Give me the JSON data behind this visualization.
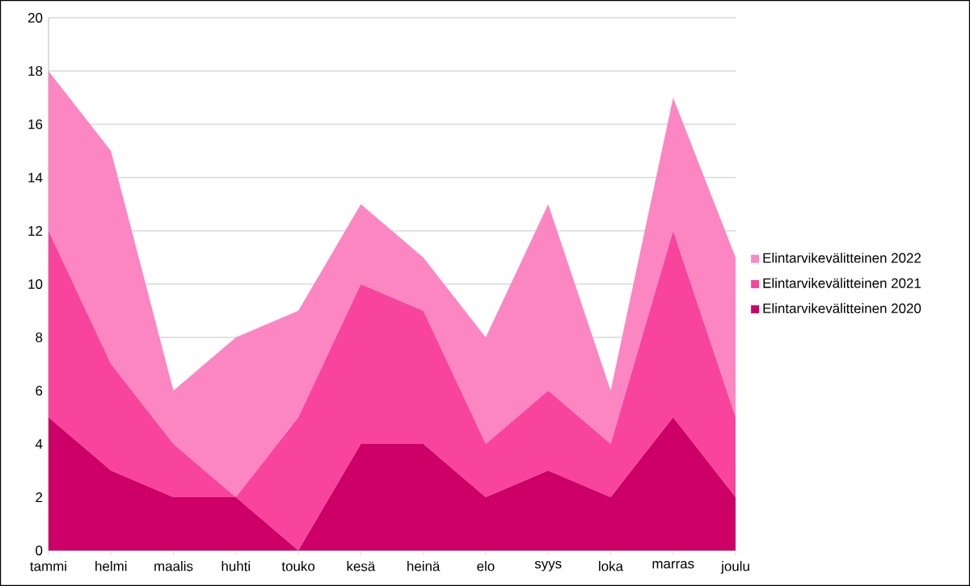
{
  "chart_data": {
    "type": "area",
    "stacked": true,
    "categories": [
      "tammi",
      "helmi",
      "maalis",
      "huhti",
      "touko",
      "kesä",
      "heinä",
      "elo",
      "syys",
      "loka",
      "marras",
      "joulu"
    ],
    "series": [
      {
        "name": "Elintarvikevälitteinen 2020",
        "color": "#cc0066",
        "values": [
          5,
          3,
          2,
          2,
          0,
          4,
          4,
          2,
          3,
          2,
          5,
          2
        ]
      },
      {
        "name": "Elintarvikevälitteinen 2021",
        "color": "#f8449c",
        "values": [
          7,
          4,
          2,
          0,
          5,
          6,
          5,
          2,
          3,
          2,
          7,
          3
        ]
      },
      {
        "name": "Elintarvikevälitteinen 2022",
        "color": "#fb86c2",
        "values": [
          6,
          8,
          2,
          6,
          4,
          3,
          2,
          4,
          7,
          2,
          5,
          6
        ]
      }
    ],
    "ylim": [
      0,
      20
    ],
    "yticks": [
      0,
      2,
      4,
      6,
      8,
      10,
      12,
      14,
      16,
      18,
      20
    ],
    "grid": "y",
    "legend": "right"
  }
}
